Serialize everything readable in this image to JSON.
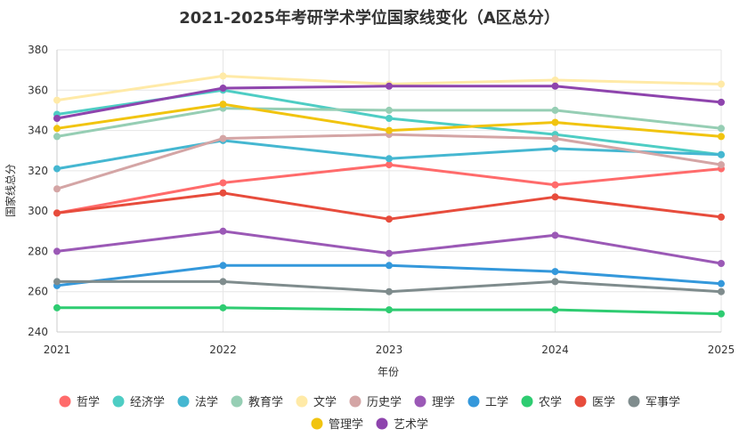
{
  "chart_data": {
    "type": "line",
    "title": "2021-2025年考研学术学位国家线变化（A区总分）",
    "xlabel": "年份",
    "ylabel": "国家线总分",
    "x": [
      "2021",
      "2022",
      "2023",
      "2024",
      "2025"
    ],
    "ylim": [
      240,
      380
    ],
    "yticks": [
      240,
      260,
      280,
      300,
      320,
      340,
      360,
      380
    ],
    "grid": true,
    "legend_position": "bottom",
    "series": [
      {
        "name": "哲学",
        "color": "#ff6b6b",
        "values": [
          299,
          314,
          323,
          313,
          321
        ]
      },
      {
        "name": "经济学",
        "color": "#4ecdc4",
        "values": [
          348,
          360,
          346,
          338,
          328
        ]
      },
      {
        "name": "法学",
        "color": "#45b7d1",
        "values": [
          321,
          335,
          326,
          331,
          328
        ]
      },
      {
        "name": "教育学",
        "color": "#96ceb4",
        "values": [
          337,
          351,
          350,
          350,
          341
        ]
      },
      {
        "name": "文学",
        "color": "#ffeaa7",
        "values": [
          355,
          367,
          363,
          365,
          363
        ]
      },
      {
        "name": "历史学",
        "color": "#d4a5a5",
        "values": [
          311,
          336,
          338,
          336,
          323
        ]
      },
      {
        "name": "理学",
        "color": "#9b59b6",
        "values": [
          280,
          290,
          279,
          288,
          274
        ]
      },
      {
        "name": "工学",
        "color": "#3498db",
        "values": [
          263,
          273,
          273,
          270,
          264
        ]
      },
      {
        "name": "农学",
        "color": "#2ecc71",
        "values": [
          252,
          252,
          251,
          251,
          249
        ]
      },
      {
        "name": "医学",
        "color": "#e74c3c",
        "values": [
          299,
          309,
          296,
          307,
          297
        ]
      },
      {
        "name": "军事学",
        "color": "#7f8c8d",
        "values": [
          265,
          265,
          260,
          265,
          260
        ]
      },
      {
        "name": "管理学",
        "color": "#f1c40f",
        "values": [
          341,
          353,
          340,
          344,
          337
        ]
      },
      {
        "name": "艺术学",
        "color": "#8e44ad",
        "values": [
          346,
          361,
          362,
          362,
          354
        ]
      }
    ]
  }
}
